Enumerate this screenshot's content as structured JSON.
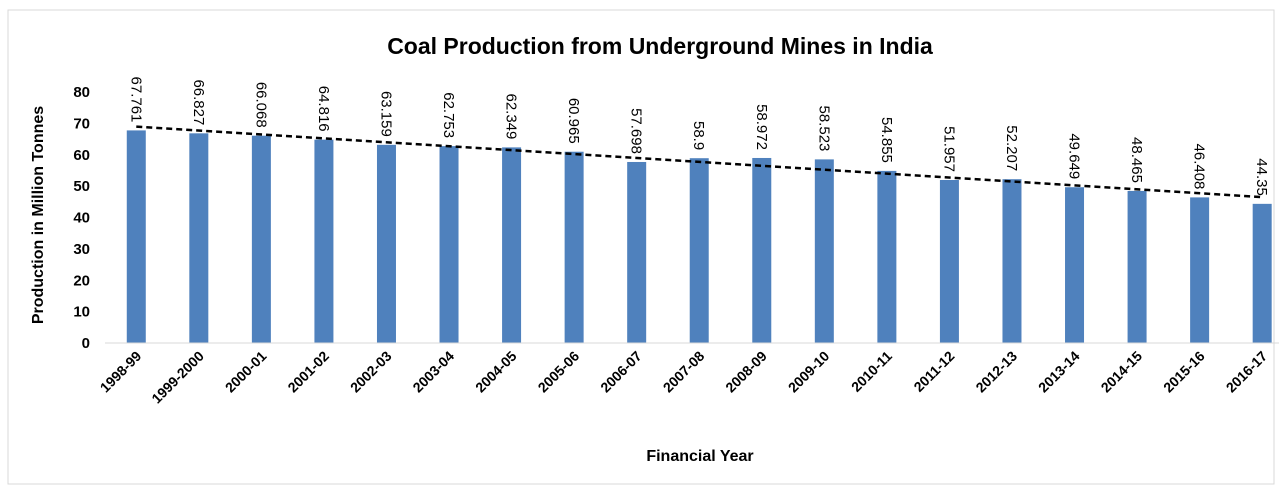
{
  "chart_data": {
    "type": "bar",
    "title": "Coal Production from Underground Mines in India",
    "x_label": "Financial Year",
    "y_label": "Production in Million Tonnes",
    "categories": [
      "1998-99",
      "1999-2000",
      "2000-01",
      "2001-02",
      "2002-03",
      "2003-04",
      "2004-05",
      "2005-06",
      "2006-07",
      "2007-08",
      "2008-09",
      "2009-10",
      "2010-11",
      "2011-12",
      "2012-13",
      "2013-14",
      "2014-15",
      "2015-16",
      "2016-17"
    ],
    "values": [
      67.761,
      66.827,
      66.068,
      64.816,
      63.159,
      62.753,
      62.349,
      60.965,
      57.698,
      58.9,
      58.972,
      58.523,
      54.855,
      51.957,
      52.207,
      49.649,
      48.465,
      46.408,
      44.35
    ],
    "color": "#4f81bd",
    "ylim": [
      0,
      80
    ],
    "yticks": [
      0,
      10,
      20,
      30,
      40,
      50,
      60,
      70,
      80
    ],
    "grid": false,
    "trendline": "linear",
    "trendline_color": "#000000"
  }
}
